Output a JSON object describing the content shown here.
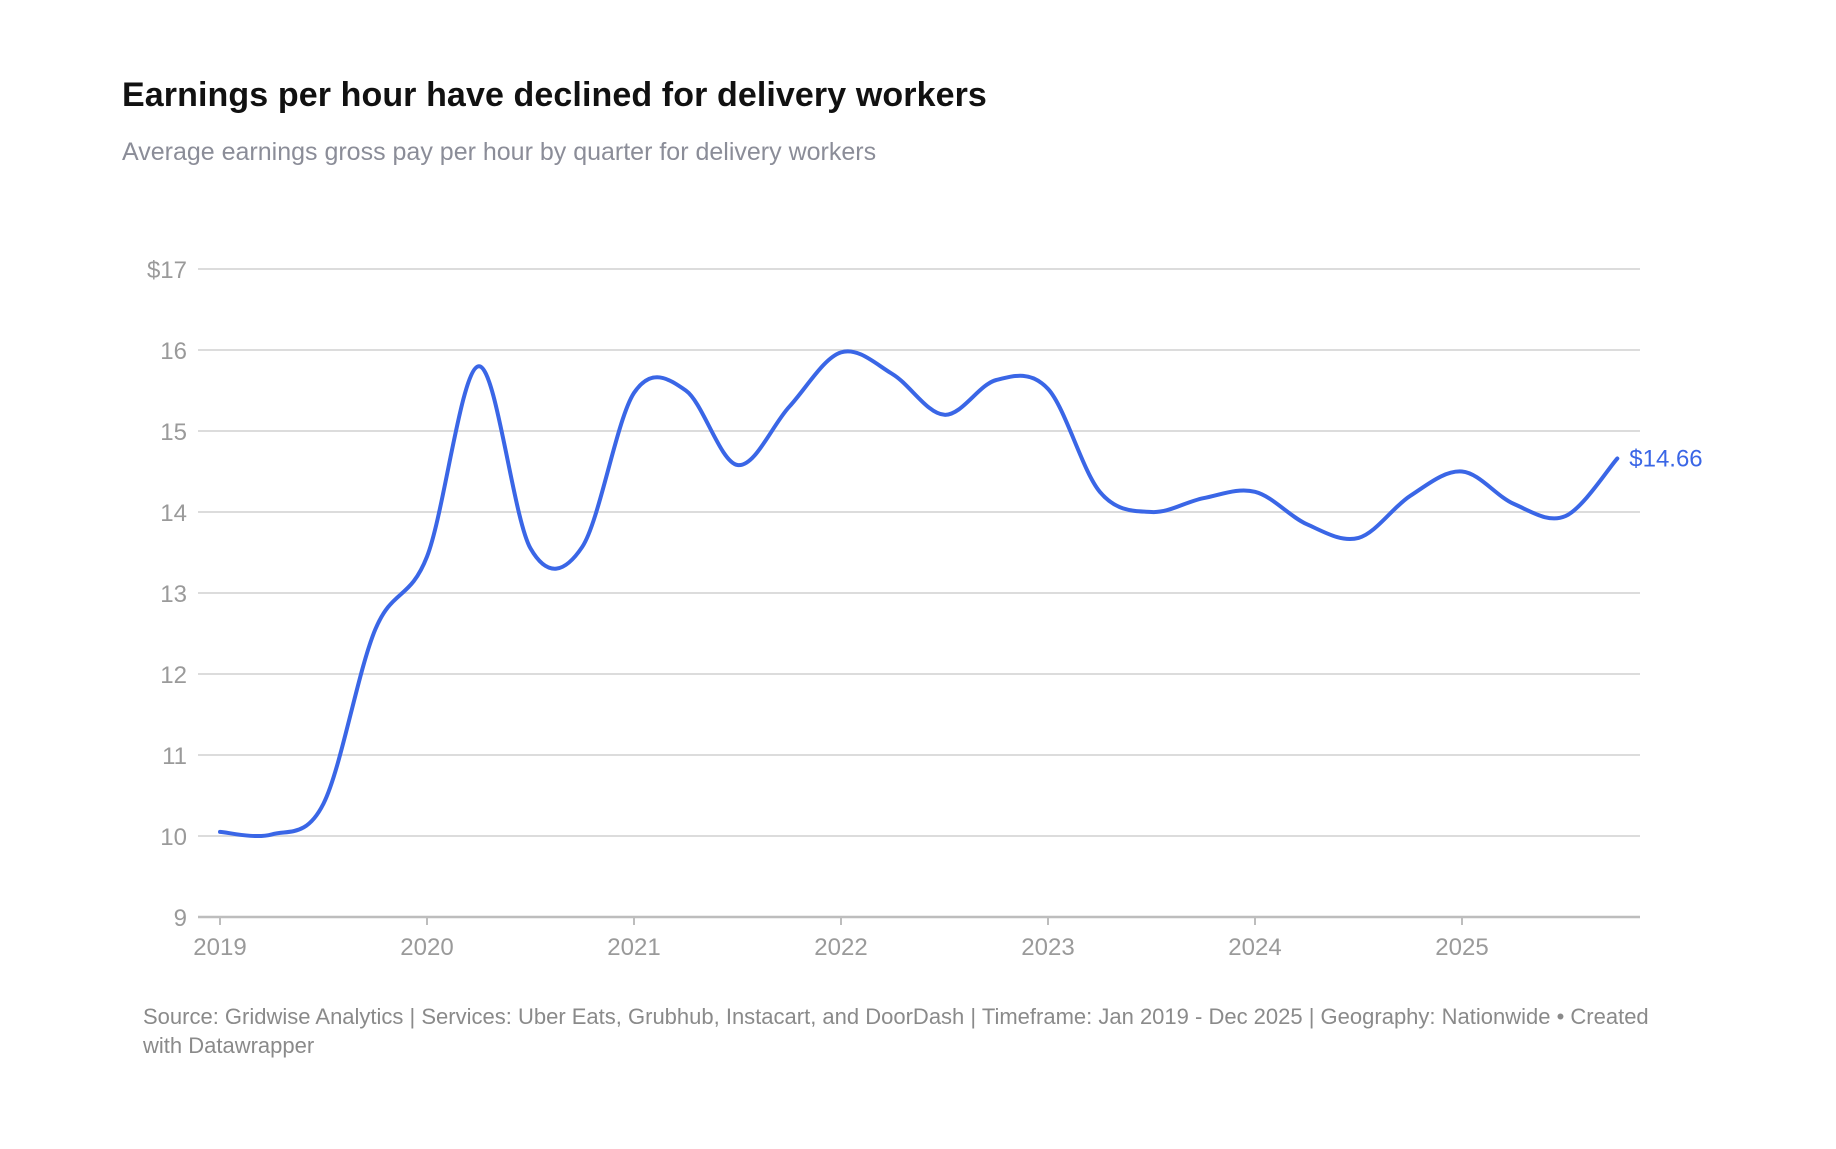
{
  "header": {
    "title": "Earnings per hour have declined for delivery workers",
    "subtitle": "Average earnings gross pay per hour by quarter for delivery workers"
  },
  "footer": {
    "source": "Source: Gridwise Analytics | Services: Uber Eats, Grubhub, Instacart, and DoorDash | Timeframe: Jan 2019 - Dec 2025 | Geography: Nationwide • Created with Datawrapper"
  },
  "colors": {
    "line": "#3a66e6",
    "grid": "#dcdcdc",
    "tick": "#9a9a9a"
  },
  "chart_data": {
    "type": "line",
    "ylim": [
      9,
      17
    ],
    "xlim": [
      2019,
      2025.9
    ],
    "y_ticks": [
      9,
      10,
      11,
      12,
      13,
      14,
      15,
      16,
      17
    ],
    "y_tick_labels": [
      "9",
      "10",
      "11",
      "12",
      "13",
      "14",
      "15",
      "16",
      "$17"
    ],
    "x_ticks": [
      2019,
      2020,
      2021,
      2022,
      2023,
      2024,
      2025
    ],
    "x_tick_labels": [
      "2019",
      "2020",
      "2021",
      "2022",
      "2023",
      "2024",
      "2025"
    ],
    "grid": true,
    "series": [
      {
        "x": [
          2019.0,
          2019.25,
          2019.5,
          2019.75,
          2020.0,
          2020.25,
          2020.5,
          2020.75,
          2021.0,
          2021.25,
          2021.5,
          2021.75,
          2022.0,
          2022.25,
          2022.5,
          2022.75,
          2023.0,
          2023.25,
          2023.5,
          2023.75,
          2024.0,
          2024.25,
          2024.5,
          2024.75,
          2025.0,
          2025.25,
          2025.5,
          2025.75
        ],
        "values": [
          10.05,
          10.02,
          10.4,
          12.55,
          13.45,
          15.8,
          13.55,
          13.57,
          15.47,
          15.5,
          14.58,
          15.3,
          15.97,
          15.7,
          15.2,
          15.63,
          15.52,
          14.25,
          14.0,
          14.17,
          14.25,
          13.85,
          13.68,
          14.2,
          14.5,
          14.1,
          13.95,
          14.66
        ],
        "end_label": "$14.66"
      }
    ]
  }
}
